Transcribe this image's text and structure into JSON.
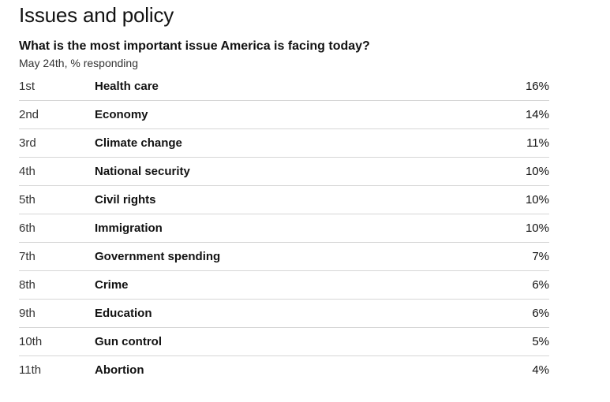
{
  "section_title": "Issues and policy",
  "chart_data": {
    "type": "table",
    "title": "What is the most important issue America is facing today?",
    "subtitle": "May 24th, % responding",
    "rows": [
      {
        "rank": "1st",
        "issue": "Health care",
        "value": 16,
        "label": "16%"
      },
      {
        "rank": "2nd",
        "issue": "Economy",
        "value": 14,
        "label": "14%"
      },
      {
        "rank": "3rd",
        "issue": "Climate change",
        "value": 11,
        "label": "11%"
      },
      {
        "rank": "4th",
        "issue": "National security",
        "value": 10,
        "label": "10%"
      },
      {
        "rank": "5th",
        "issue": "Civil rights",
        "value": 10,
        "label": "10%"
      },
      {
        "rank": "6th",
        "issue": "Immigration",
        "value": 10,
        "label": "10%"
      },
      {
        "rank": "7th",
        "issue": "Government spending",
        "value": 7,
        "label": "7%"
      },
      {
        "rank": "8th",
        "issue": "Crime",
        "value": 6,
        "label": "6%"
      },
      {
        "rank": "9th",
        "issue": "Education",
        "value": 6,
        "label": "6%"
      },
      {
        "rank": "10th",
        "issue": "Gun control",
        "value": 5,
        "label": "5%"
      },
      {
        "rank": "11th",
        "issue": "Abortion",
        "value": 4,
        "label": "4%"
      }
    ]
  }
}
